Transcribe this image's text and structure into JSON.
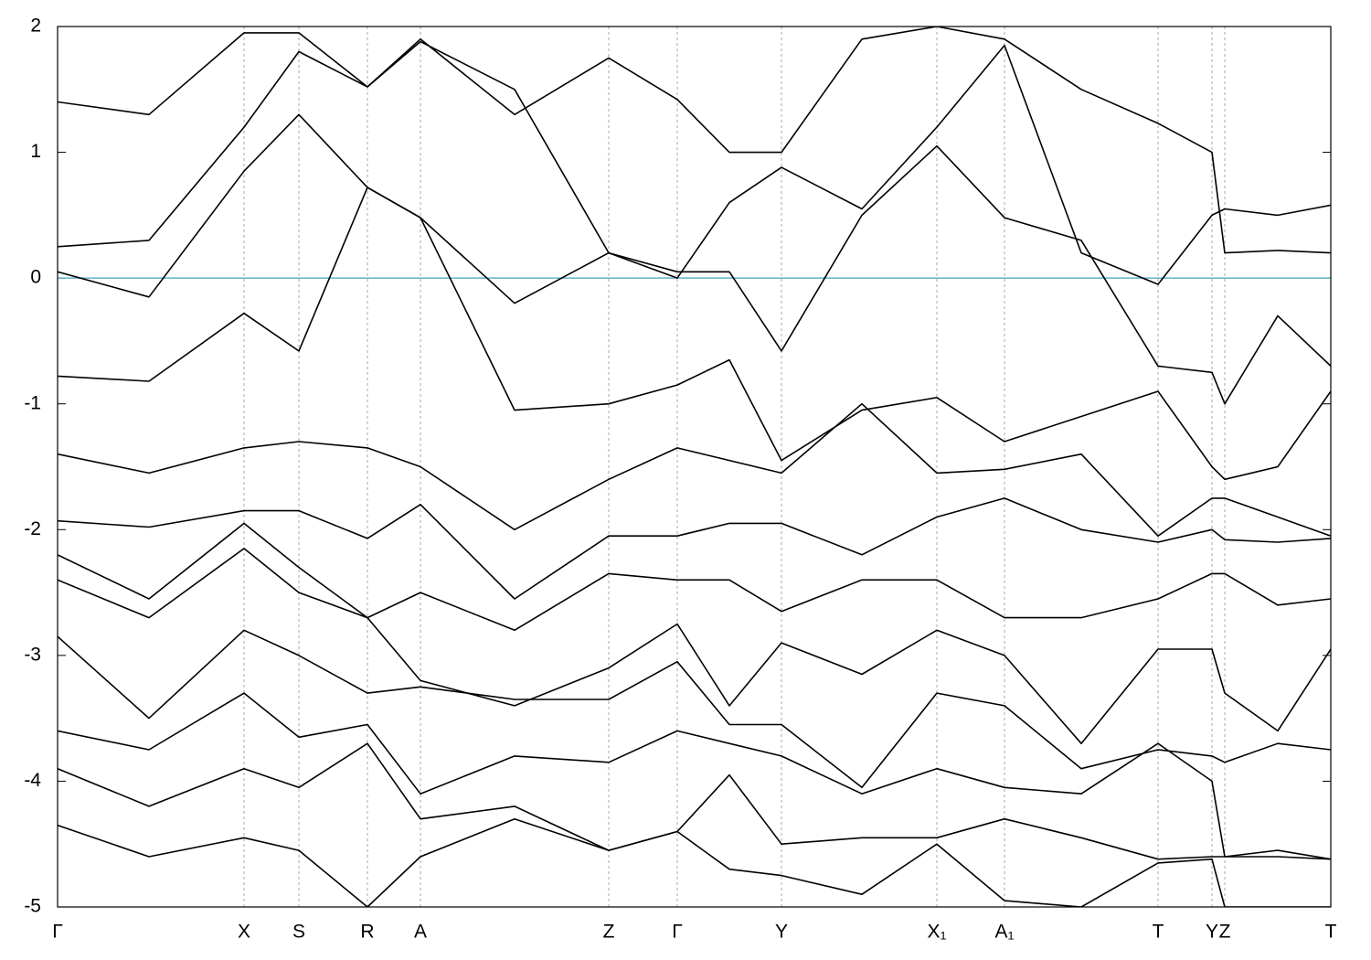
{
  "chart_data": {
    "type": "line",
    "x": [
      0,
      100,
      204,
      264,
      339,
      397,
      500,
      603,
      678,
      735,
      792,
      880,
      962,
      1036,
      1120,
      1204,
      1263,
      1277,
      1335,
      1393
    ],
    "xlim": [
      0,
      1393
    ],
    "xticks": [
      {
        "value": 0,
        "label": "Γ"
      },
      {
        "value": 204,
        "label": "X"
      },
      {
        "value": 264,
        "label": "S"
      },
      {
        "value": 339,
        "label": "R"
      },
      {
        "value": 397,
        "label": "A"
      },
      {
        "value": 603,
        "label": "Z"
      },
      {
        "value": 678,
        "label": "Γ"
      },
      {
        "value": 792,
        "label": "Y"
      },
      {
        "value": 962,
        "label": "X₁"
      },
      {
        "value": 1036,
        "label": "A₁"
      },
      {
        "value": 1204,
        "label": "T"
      },
      {
        "value": 1263,
        "label": "Y"
      },
      {
        "value": 1277,
        "label": "Z"
      },
      {
        "value": 1393,
        "label": "T"
      }
    ],
    "ylim": [
      -5,
      2
    ],
    "yticks": [
      -5,
      -4,
      -3,
      -2,
      -1,
      0,
      1,
      2
    ],
    "grid_x": true,
    "reference_line": {
      "value": 0,
      "color": "#5fb3c8"
    },
    "series": [
      {
        "color": "#000000",
        "values": [
          0.05,
          -0.15,
          0.85,
          1.3,
          0.72,
          0.48,
          -1.05,
          -1.0,
          -0.85,
          -0.65,
          -1.45,
          -1.05,
          -0.95,
          -1.3,
          -1.1,
          -0.9,
          -1.5,
          -1.6,
          -1.5,
          -0.9
        ]
      },
      {
        "color": "#000000",
        "values": [
          -0.78,
          -0.82,
          -0.28,
          -0.58,
          0.72,
          0.48,
          -0.2,
          0.2,
          0.05,
          0.05,
          -0.58,
          0.5,
          1.05,
          0.48,
          0.3,
          -0.7,
          -0.75,
          -1.0,
          -0.3,
          -0.7
        ]
      },
      {
        "color": "#000000",
        "values": [
          0.25,
          0.3,
          1.2,
          1.8,
          1.52,
          1.88,
          1.5,
          0.2,
          0.0,
          0.6,
          0.88,
          0.55,
          1.2,
          1.85,
          0.2,
          -0.05,
          0.5,
          0.55,
          0.5,
          0.58
        ]
      },
      {
        "color": "#000000",
        "values": [
          1.4,
          1.3,
          1.95,
          1.95,
          1.52,
          1.9,
          1.3,
          1.75,
          1.42,
          1.0,
          1.0,
          1.9,
          2.0,
          1.9,
          1.5,
          1.23,
          1.0,
          0.2,
          0.22,
          0.2
        ]
      },
      {
        "color": "#000000",
        "values": [
          -1.4,
          -1.55,
          -1.35,
          -1.3,
          -1.35,
          -1.5,
          -2.0,
          -1.6,
          -1.35,
          -1.45,
          -1.55,
          -1.0,
          -1.55,
          -1.52,
          -1.4,
          -2.05,
          -1.75,
          -1.75,
          -1.9,
          -2.05
        ]
      },
      {
        "color": "#000000",
        "values": [
          -1.93,
          -1.98,
          -1.85,
          -1.85,
          -2.07,
          -1.8,
          -2.55,
          -2.05,
          -2.05,
          -1.95,
          -1.95,
          -2.2,
          -1.9,
          -1.75,
          -2.0,
          -2.1,
          -2.0,
          -2.08,
          -2.1,
          -2.07
        ]
      },
      {
        "color": "#000000",
        "values": [
          -2.2,
          -2.55,
          -1.95,
          -2.3,
          -2.7,
          -2.5,
          -2.8,
          -2.35,
          -2.4,
          -2.4,
          -2.65,
          -2.4,
          -2.4,
          -2.7,
          -2.7,
          -2.55,
          -2.35,
          -2.35,
          -2.6,
          -2.55
        ]
      },
      {
        "color": "#000000",
        "values": [
          -2.4,
          -2.7,
          -2.15,
          -2.5,
          -2.7,
          -3.2,
          -3.4,
          -3.1,
          -2.75,
          -3.4,
          -2.9,
          -3.15,
          -2.8,
          -3.0,
          -3.7,
          -2.95,
          -2.95,
          -3.3,
          -3.6,
          -2.95
        ]
      },
      {
        "color": "#000000",
        "values": [
          -2.85,
          -3.5,
          -2.8,
          -3.0,
          -3.3,
          -3.25,
          -3.35,
          -3.35,
          -3.05,
          -3.55,
          -3.55,
          -4.05,
          -3.3,
          -3.4,
          -3.9,
          -3.75,
          -3.8,
          -3.85,
          -3.7,
          -3.75
        ]
      },
      {
        "color": "#000000",
        "values": [
          -3.6,
          -3.75,
          -3.3,
          -3.65,
          -3.55,
          -4.1,
          -3.8,
          -3.85,
          -3.6,
          -3.7,
          -3.8,
          -4.1,
          -3.9,
          -4.05,
          -4.1,
          -3.7,
          -4.0,
          -4.6,
          -4.55,
          -4.62
        ]
      },
      {
        "color": "#000000",
        "values": [
          -3.9,
          -4.2,
          -3.9,
          -4.05,
          -3.7,
          -4.3,
          -4.2,
          -4.55,
          -4.4,
          -3.95,
          -4.5,
          -4.45,
          -4.45,
          -4.3,
          -4.45,
          -4.62,
          -4.6,
          -4.6,
          -4.6,
          -4.62
        ]
      },
      {
        "color": "#000000",
        "values": [
          -4.35,
          -4.6,
          -4.45,
          -4.55,
          -5.0,
          -4.6,
          -4.3,
          -4.55,
          -4.4,
          -4.7,
          -4.75,
          -4.9,
          -4.5,
          -4.95,
          -5.0,
          -4.65,
          -4.62,
          -5.0,
          -5.0,
          -5.0
        ]
      }
    ]
  }
}
